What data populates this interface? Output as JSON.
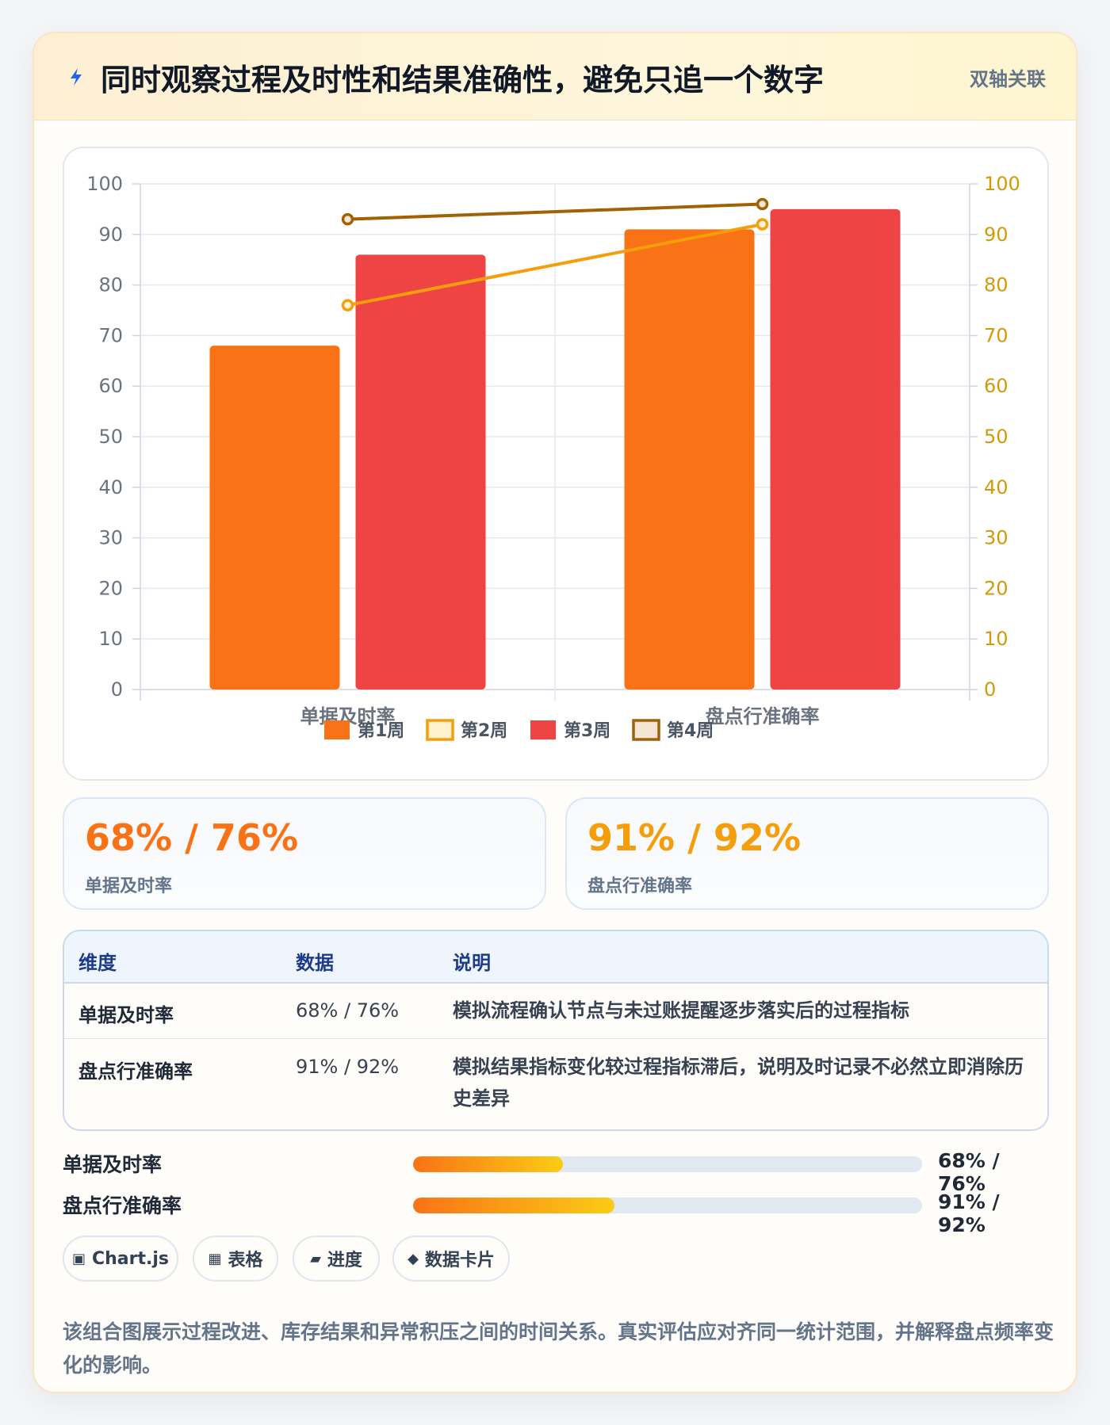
{
  "header": {
    "title": "同时观察过程及时性和结果准确性，避免只追一个数字",
    "tag": "双轴关联"
  },
  "colors": {
    "week1": "#f97316",
    "week2": "#f59e0b",
    "week3": "#ef4444",
    "week4": "#a16207"
  },
  "chart_data": {
    "type": "bar",
    "categories": [
      "单据及时率",
      "盘点行准确率"
    ],
    "series": [
      {
        "name": "第1周",
        "kind": "bar",
        "axis": "left",
        "values": [
          68,
          91
        ]
      },
      {
        "name": "第2周",
        "kind": "line",
        "axis": "right",
        "values": [
          76,
          92
        ]
      },
      {
        "name": "第3周",
        "kind": "bar",
        "axis": "left",
        "values": [
          86,
          95
        ]
      },
      {
        "name": "第4周",
        "kind": "line",
        "axis": "right",
        "values": [
          93,
          96
        ]
      }
    ],
    "y_left": {
      "min": 0,
      "max": 100,
      "ticks": [
        0,
        10,
        20,
        30,
        40,
        50,
        60,
        70,
        80,
        90,
        100
      ]
    },
    "y_right": {
      "min": 0,
      "max": 100,
      "ticks": [
        0,
        10,
        20,
        30,
        40,
        50,
        60,
        70,
        80,
        90,
        100
      ]
    },
    "legend_position": "bottom",
    "grid": true
  },
  "stats": [
    {
      "value": "68% / 76%",
      "label": "单据及时率"
    },
    {
      "value": "91% / 92%",
      "label": "盘点行准确率"
    }
  ],
  "table": {
    "headers": [
      "维度",
      "数据",
      "说明"
    ],
    "rows": [
      {
        "name": "单据及时率",
        "data": "68% / 76%",
        "desc": "模拟流程确认节点与未过账提醒逐步落实后的过程指标"
      },
      {
        "name": "盘点行准确率",
        "data": "91% / 92%",
        "desc": "模拟结果指标变化较过程指标滞后，说明及时记录不必然立即消除历史差异"
      }
    ]
  },
  "progress": [
    {
      "label": "单据及时率",
      "value": "68% / 76%",
      "fill": 0.295
    },
    {
      "label": "盘点行准确率",
      "value": "91% / 92%",
      "fill": 0.395
    }
  ],
  "chips": [
    {
      "icon": "▣",
      "label": "Chart.js"
    },
    {
      "icon": "▦",
      "label": "表格"
    },
    {
      "icon": "▰",
      "label": "进度"
    },
    {
      "icon": "◆",
      "label": "数据卡片"
    }
  ],
  "footnote": "该组合图展示过程改进、库存结果和异常积压之间的时间关系。真实评估应对齐同一统计范围，并解释盘点频率变化的影响。"
}
